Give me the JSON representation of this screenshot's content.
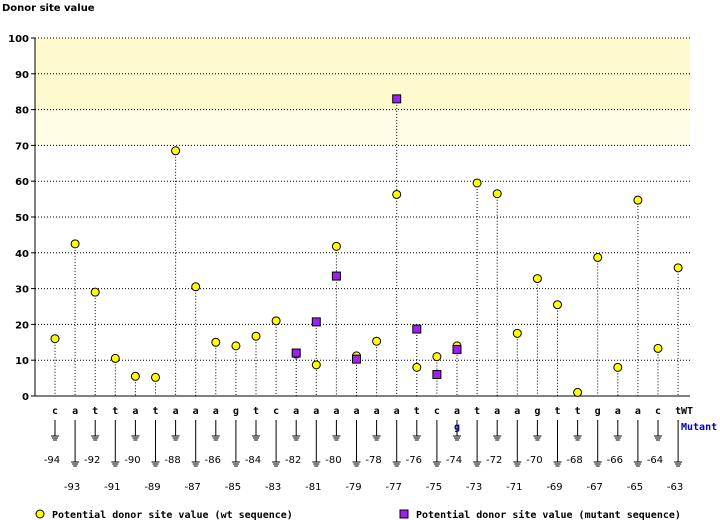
{
  "chart_data": {
    "type": "scatter",
    "title": "Donor site value",
    "ylabel": "Donor site value",
    "xlabel": "",
    "ylim": [
      0,
      100
    ],
    "yticks": [
      0,
      10,
      20,
      30,
      40,
      50,
      60,
      70,
      80,
      90,
      100
    ],
    "highlight_bands": [
      {
        "range": [
          80,
          100
        ],
        "color": "#fffacd"
      },
      {
        "range": [
          70,
          80
        ],
        "color": "#fffde6"
      }
    ],
    "positions": [
      -94,
      -93,
      -92,
      -91,
      -90,
      -89,
      -88,
      -87,
      -86,
      -85,
      -84,
      -83,
      -82,
      -81,
      -80,
      -79,
      -78,
      -77,
      -76,
      -75,
      -74,
      -73,
      -72,
      -71,
      -70,
      -69,
      -68,
      -67,
      -66,
      -65,
      -64,
      -63
    ],
    "wt_sequence": [
      "c",
      "a",
      "t",
      "t",
      "a",
      "t",
      "a",
      "a",
      "a",
      "g",
      "t",
      "c",
      "a",
      "a",
      "a",
      "a",
      "a",
      "a",
      "t",
      "c",
      "a",
      "t",
      "a",
      "a",
      "g",
      "t",
      "t",
      "g",
      "a",
      "a",
      "c",
      "t"
    ],
    "mutant_sequence": [
      "",
      "",
      "",
      "",
      "",
      "",
      "",
      "",
      "",
      "",
      "",
      "",
      "",
      "",
      "",
      "",
      "",
      "",
      "",
      "",
      "g",
      "",
      "",
      "",
      "",
      "",
      "",
      "",
      "",
      "",
      "",
      ""
    ],
    "row_labels": {
      "wt": "WT",
      "mutant": "Mutant"
    },
    "series": [
      {
        "name": "Potential donor site value (wt sequence)",
        "marker": "circle",
        "color": "#ffff00",
        "values": [
          16,
          42.5,
          29,
          10.5,
          5.5,
          5.2,
          68.5,
          30.5,
          15,
          14,
          16.7,
          21,
          11.7,
          8.7,
          41.8,
          11.2,
          15.3,
          56.3,
          8,
          11,
          14,
          59.5,
          56.5,
          17.5,
          32.8,
          25.5,
          1,
          38.7,
          8,
          54.7,
          13.3,
          35.8
        ]
      },
      {
        "name": "Potential donor site value (mutant sequence)",
        "marker": "square",
        "color": "#a020f0",
        "values": [
          null,
          null,
          null,
          null,
          null,
          null,
          null,
          null,
          null,
          null,
          null,
          null,
          12,
          20.7,
          33.5,
          10.3,
          null,
          83,
          18.7,
          6,
          13,
          null,
          null,
          null,
          null,
          null,
          null,
          null,
          null,
          null,
          null,
          null
        ]
      }
    ],
    "legend": [
      {
        "label": "Potential donor site value (wt sequence)",
        "marker": "circle",
        "color": "#ffff00"
      },
      {
        "label": "Potential donor site value (mutant sequence)",
        "marker": "square",
        "color": "#a020f0"
      }
    ]
  }
}
